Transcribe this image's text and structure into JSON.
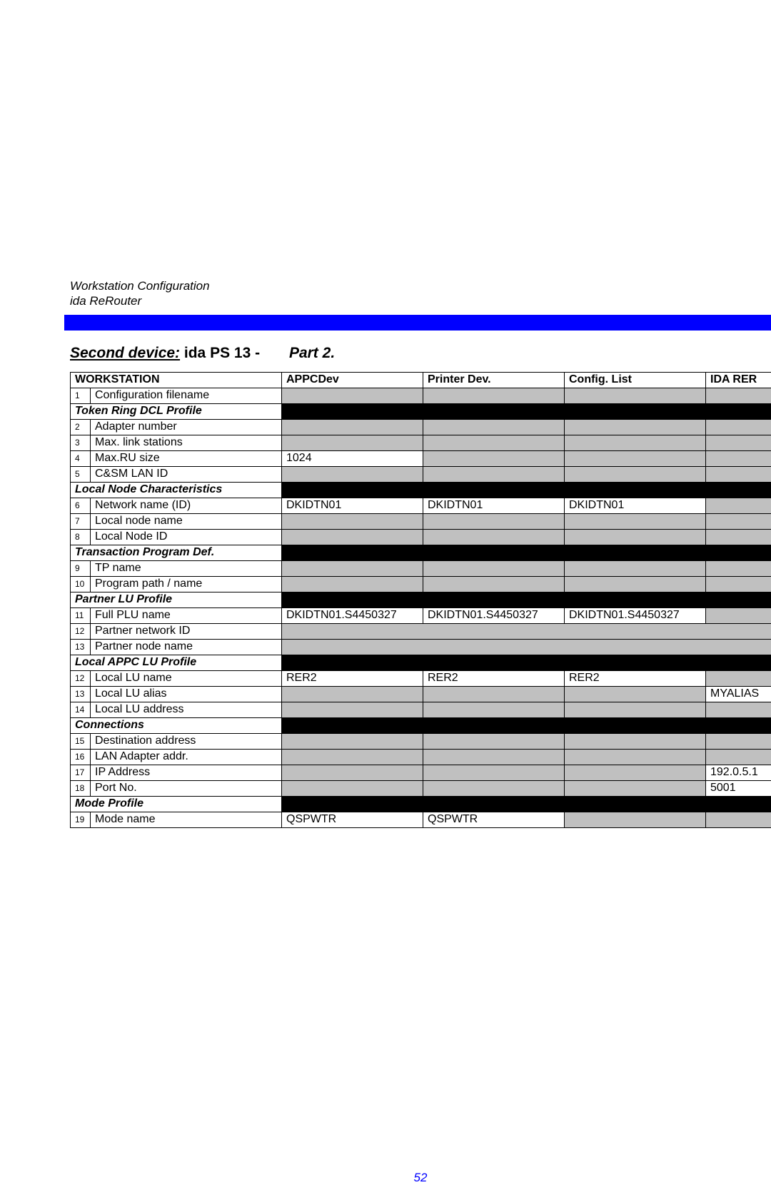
{
  "header": {
    "line1": "Workstation Configuration",
    "line2": "ida ReRouter"
  },
  "title": {
    "underlined": "Second device:",
    "device": " ida PS 13",
    "dash": "   -",
    "part": "Part 2."
  },
  "columns": {
    "workstation": "WORKSTATION",
    "appc": "APPCDev",
    "printer": "Printer Dev.",
    "config": "Config. List",
    "ida": "IDA RER"
  },
  "sections": {
    "tokenring": "Token Ring DCL Profile",
    "localnode": "Local Node Characteristics",
    "transaction": "Transaction Program Def.",
    "partner": "Partner LU Profile",
    "localappc": "Local APPC LU Profile",
    "connections": "Connections",
    "modeprofile": "Mode Profile"
  },
  "rows": {
    "r1": {
      "n": "1",
      "label": "Configuration filename",
      "a": "",
      "b": "",
      "c": "",
      "d": ""
    },
    "r2": {
      "n": "2",
      "label": "Adapter number",
      "a": "",
      "b": "",
      "c": "",
      "d": ""
    },
    "r3": {
      "n": "3",
      "label": "Max. link stations",
      "a": "",
      "b": "",
      "c": "",
      "d": ""
    },
    "r4": {
      "n": "4",
      "label": "Max.RU size",
      "a": "1024",
      "b": "",
      "c": "",
      "d": ""
    },
    "r5": {
      "n": "5",
      "label": "C&SM LAN ID",
      "a": "",
      "b": "",
      "c": "",
      "d": ""
    },
    "r6": {
      "n": "6",
      "label": "Network name (ID)",
      "a": "DKIDTN01",
      "b": "DKIDTN01",
      "c": "DKIDTN01",
      "d": ""
    },
    "r7": {
      "n": "7",
      "label": "Local node name",
      "a": "",
      "b": "",
      "c": "",
      "d": ""
    },
    "r8": {
      "n": "8",
      "label": "Local Node ID",
      "a": "",
      "b": "",
      "c": "",
      "d": ""
    },
    "r9": {
      "n": "9",
      "label": "TP name",
      "a": "",
      "b": "",
      "c": "",
      "d": ""
    },
    "r10": {
      "n": "10",
      "label": "Program path / name",
      "a": "",
      "b": "",
      "c": "",
      "d": ""
    },
    "r11": {
      "n": "11",
      "label": "Full PLU name",
      "a": "DKIDTN01.S4450327",
      "b": "DKIDTN01.S4450327",
      "c": "DKIDTN01.S4450327",
      "d": ""
    },
    "r12": {
      "n": "12",
      "label": "Partner network ID",
      "a": "",
      "b": "",
      "c": "",
      "d": ""
    },
    "r13": {
      "n": "13",
      "label": "Partner node name",
      "a": "",
      "b": "",
      "c": "",
      "d": ""
    },
    "r14": {
      "n": "12",
      "label": "Local LU name",
      "a": "RER2",
      "b": "RER2",
      "c": "RER2",
      "d": ""
    },
    "r15": {
      "n": "13",
      "label": "Local LU alias",
      "a": "",
      "b": "",
      "c": "",
      "d": "MYALIAS"
    },
    "r16": {
      "n": "14",
      "label": "Local LU address",
      "a": "",
      "b": "",
      "c": "",
      "d": ""
    },
    "r17": {
      "n": "15",
      "label": "Destination address",
      "a": "",
      "b": "",
      "c": "",
      "d": ""
    },
    "r18": {
      "n": "16",
      "label": "LAN Adapter addr.",
      "a": "",
      "b": "",
      "c": "",
      "d": ""
    },
    "r19": {
      "n": "17",
      "label": "IP Address",
      "a": "",
      "b": "",
      "c": "",
      "d": "192.0.5.1"
    },
    "r20": {
      "n": "18",
      "label": "Port No.",
      "a": "",
      "b": "",
      "c": "",
      "d": "5001"
    },
    "r21": {
      "n": "19",
      "label": "Mode name",
      "a": "QSPWTR",
      "b": "QSPWTR",
      "c": "",
      "d": ""
    }
  },
  "pagenum": "52"
}
